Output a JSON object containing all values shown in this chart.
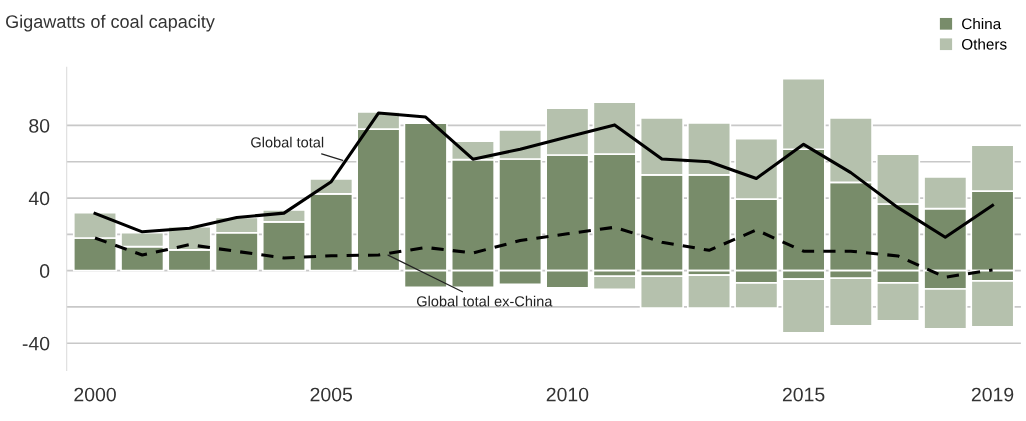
{
  "chart_data": {
    "type": "bar",
    "stacked": true,
    "title": "Gigawatts of coal capacity",
    "categories": [
      "2000",
      null,
      null,
      null,
      null,
      "2005",
      null,
      null,
      null,
      null,
      "2010",
      null,
      null,
      null,
      null,
      "2015",
      null,
      null,
      null,
      "2019"
    ],
    "series": [
      {
        "name": "China",
        "color": "#788c6a",
        "values": [
          18,
          13.2,
          11.4,
          20.9,
          26.9,
          42.3,
          78,
          81.3,
          61.2,
          61.5,
          63.7,
          64.2,
          52.8,
          52.8,
          39.4,
          66.9,
          48.6,
          36.7,
          34.2,
          43.8
        ]
      },
      {
        "name": "Others",
        "color": "#b5c1ad",
        "values": [
          14,
          7.7,
          12.8,
          8.4,
          6.6,
          8.2,
          9.4,
          0,
          10.2,
          16.1,
          25.8,
          28.6,
          31.3,
          28.6,
          33.3,
          38.9,
          35.5,
          27.5,
          17.5,
          25.3
        ]
      },
      {
        "color": "#788c6a",
        "values": [
          0,
          0,
          0,
          0,
          0,
          0,
          0,
          -9.2,
          -9.2,
          -7.6,
          -9.4,
          -3.1,
          -3.1,
          -2.5,
          -6.7,
          -4.7,
          -4.2,
          -6.7,
          -10.1,
          -5.6
        ]
      },
      {
        "color": "#b5c1ad",
        "values": [
          0,
          0,
          0,
          0,
          0,
          0,
          0,
          0,
          0,
          0,
          0,
          -7.2,
          -17.5,
          -18.1,
          -13.9,
          -29.5,
          -26.2,
          -21,
          -21.9,
          -25.3
        ]
      },
      {
        "name": "Global total",
        "type": "line",
        "color": "#000000",
        "line_style": "solid",
        "values": [
          31.5,
          21.4,
          23.4,
          29.3,
          31.7,
          49,
          86.8,
          84.6,
          61.4,
          66.9,
          73.6,
          80.3,
          61.5,
          60,
          50.8,
          69.6,
          54,
          34.7,
          18.4,
          36
        ]
      },
      {
        "name": "Global total ex-China",
        "type": "line",
        "color": "#000000",
        "line_style": "dashed",
        "values": [
          18,
          8.6,
          14.3,
          10.6,
          7,
          8.2,
          8.6,
          12.8,
          9.7,
          16.6,
          20.3,
          23.9,
          15.7,
          11.2,
          22.4,
          10.7,
          10.7,
          8.1,
          -3.6,
          0.4
        ]
      }
    ],
    "ylim": [
      -55,
      112
    ],
    "yticks": [
      {
        "value": -40,
        "label": "-40"
      },
      {
        "value": -20,
        "label": null
      },
      0,
      {
        "value": 20,
        "label": null
      },
      40,
      {
        "value": 60,
        "label": null
      },
      80
    ],
    "grid": "y",
    "legend": "top right"
  }
}
